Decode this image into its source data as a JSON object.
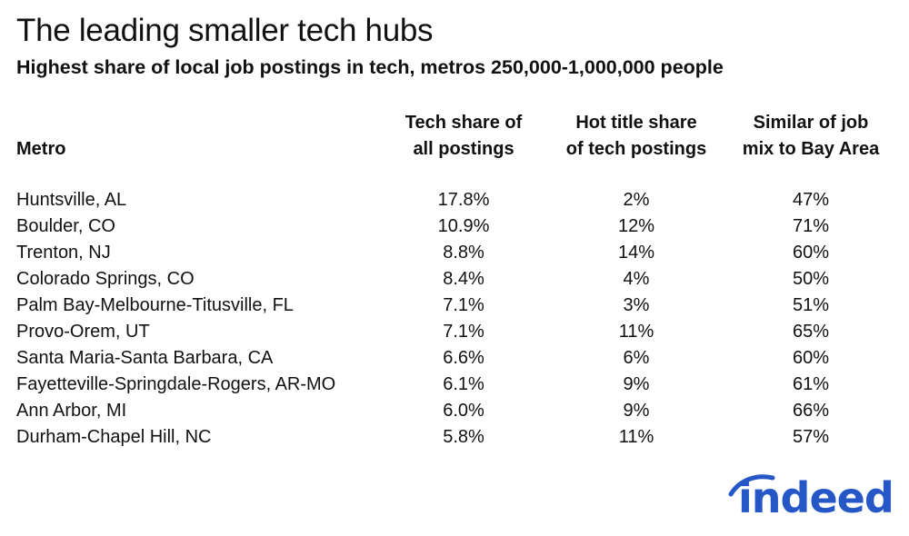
{
  "title": "The leading smaller tech hubs",
  "subtitle": "Highest share of local job postings in tech, metros 250,000-1,000,000 people",
  "headers": {
    "metro": "Metro",
    "tech_share": [
      "Tech share of",
      "all postings"
    ],
    "hot_title": [
      "Hot title share",
      "of tech postings"
    ],
    "similar": [
      "Similar of job",
      "mix to Bay Area"
    ]
  },
  "rows": [
    {
      "metro": "Huntsville, AL",
      "tech_share": "17.8%",
      "hot_title": "2%",
      "similar": "47%"
    },
    {
      "metro": "Boulder, CO",
      "tech_share": "10.9%",
      "hot_title": "12%",
      "similar": "71%"
    },
    {
      "metro": "Trenton, NJ",
      "tech_share": "8.8%",
      "hot_title": "14%",
      "similar": "60%"
    },
    {
      "metro": "Colorado Springs, CO",
      "tech_share": "8.4%",
      "hot_title": "4%",
      "similar": "50%"
    },
    {
      "metro": "Palm Bay-Melbourne-Titusville, FL",
      "tech_share": "7.1%",
      "hot_title": "3%",
      "similar": "51%"
    },
    {
      "metro": "Provo-Orem, UT",
      "tech_share": "7.1%",
      "hot_title": "11%",
      "similar": "65%"
    },
    {
      "metro": "Santa Maria-Santa Barbara, CA",
      "tech_share": "6.6%",
      "hot_title": "6%",
      "similar": "60%"
    },
    {
      "metro": "Fayetteville-Springdale-Rogers, AR-MO",
      "tech_share": "6.1%",
      "hot_title": "9%",
      "similar": "61%"
    },
    {
      "metro": "Ann Arbor, MI",
      "tech_share": "6.0%",
      "hot_title": "9%",
      "similar": "66%"
    },
    {
      "metro": "Durham-Chapel Hill, NC",
      "tech_share": "5.8%",
      "hot_title": "11%",
      "similar": "57%"
    }
  ],
  "logo": {
    "text": "indeed",
    "color": "#2557c6"
  },
  "chart_data": {
    "type": "table",
    "title": "The leading smaller tech hubs",
    "subtitle": "Highest share of local job postings in tech, metros 250,000-1,000,000 people",
    "columns": [
      "Metro",
      "Tech share of all postings",
      "Hot title share of tech postings",
      "Similar of job mix to Bay Area"
    ],
    "categories": [
      "Huntsville, AL",
      "Boulder, CO",
      "Trenton, NJ",
      "Colorado Springs, CO",
      "Palm Bay-Melbourne-Titusville, FL",
      "Provo-Orem, UT",
      "Santa Maria-Santa Barbara, CA",
      "Fayetteville-Springdale-Rogers, AR-MO",
      "Ann Arbor, MI",
      "Durham-Chapel Hill, NC"
    ],
    "series": [
      {
        "name": "Tech share of all postings",
        "values": [
          17.8,
          10.9,
          8.8,
          8.4,
          7.1,
          7.1,
          6.6,
          6.1,
          6.0,
          5.8
        ]
      },
      {
        "name": "Hot title share of tech postings",
        "values": [
          2,
          12,
          14,
          4,
          3,
          11,
          6,
          9,
          9,
          11
        ]
      },
      {
        "name": "Similar of job mix to Bay Area",
        "values": [
          47,
          71,
          60,
          50,
          51,
          65,
          60,
          61,
          66,
          57
        ]
      }
    ]
  }
}
